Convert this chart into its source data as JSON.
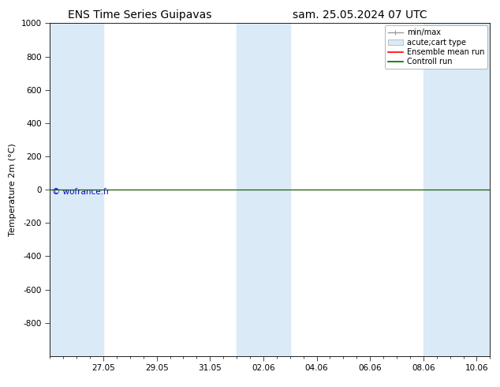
{
  "title_left": "ENS Time Series Guipavas",
  "title_right": "sam. 25.05.2024 07 UTC",
  "ylabel": "Temperature 2m (°C)",
  "ylim_top": -1000,
  "ylim_bottom": 1000,
  "yticks": [
    -800,
    -600,
    -400,
    -200,
    0,
    200,
    400,
    600,
    800,
    1000
  ],
  "xlim_start": 0.0,
  "xlim_end": 16.5,
  "xtick_labels": [
    "27.05",
    "29.05",
    "31.05",
    "02.06",
    "04.06",
    "06.06",
    "08.06",
    "10.06"
  ],
  "xtick_positions": [
    2.0,
    4.0,
    6.0,
    8.0,
    10.0,
    12.0,
    14.0,
    16.0
  ],
  "shaded_bands": [
    {
      "x_start": 0.0,
      "x_end": 2.0
    },
    {
      "x_start": 7.0,
      "x_end": 9.0
    },
    {
      "x_start": 14.0,
      "x_end": 16.5
    }
  ],
  "shaded_color": "#daeaf6",
  "ensemble_mean_color": "#ff0000",
  "control_run_color": "#006400",
  "minmax_color": "#999999",
  "background_color": "#ffffff",
  "plot_bg_color": "#ffffff",
  "legend_labels": [
    "min/max",
    "acute;cart type",
    "Ensemble mean run",
    "Controll run"
  ],
  "copyright_text": "© wofrance.fr",
  "copyright_color": "#0000cc",
  "title_fontsize": 10,
  "axis_fontsize": 8,
  "tick_fontsize": 7.5,
  "legend_fontsize": 7
}
